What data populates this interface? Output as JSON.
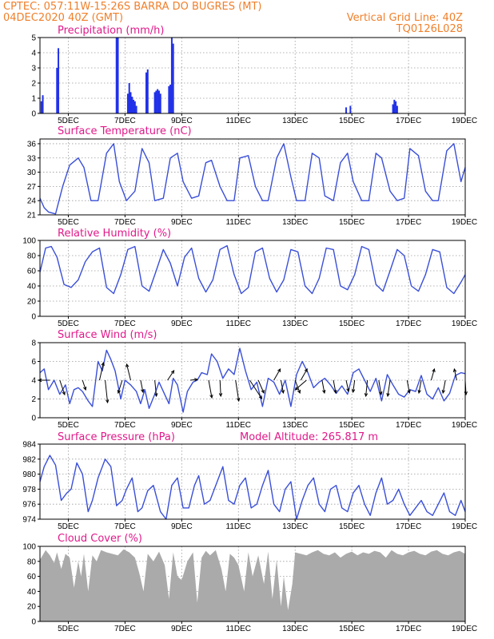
{
  "header": {
    "line1_left": "CPTEC:   057:11W-15:26S  BARRA DO BUGRES (MT)",
    "line2_left": "04DEC2020 40Z (GMT)",
    "line2_right": "Vertical Grid Line: 40Z",
    "line3_right": "TQ0126L028"
  },
  "colors": {
    "header": "#f07f2a",
    "panel_title": "#e0198a",
    "series_line": "#3a4fd8",
    "precip_bar": "#2030e8",
    "cloud_fill": "#aaaaaa",
    "grid": "#9a9a9a",
    "wind_arrow": "#000000"
  },
  "x_axis": {
    "start_day": 4,
    "end_day": 19,
    "tick_labels": [
      "5DEC",
      "7DEC",
      "9DEC",
      "11DEC",
      "13DEC",
      "15DEC",
      "17DEC",
      "19DEC"
    ],
    "tick_days": [
      5,
      7,
      9,
      11,
      13,
      15,
      17,
      19
    ]
  },
  "chart_data": [
    {
      "id": "precip",
      "type": "bar",
      "title": "Precipitation (mm/h)",
      "ylim": [
        0,
        5
      ],
      "yticks": [
        0,
        1,
        2,
        3,
        4,
        5
      ],
      "series": [
        {
          "x": [
            4.05,
            4.1,
            4.6,
            4.65,
            6.7,
            6.75,
            7.1,
            7.15,
            7.2,
            7.25,
            7.3,
            7.35,
            7.4,
            7.75,
            7.8,
            8.05,
            8.1,
            8.15,
            8.2,
            8.25,
            8.55,
            8.6,
            8.65,
            8.7,
            14.8,
            14.95,
            16.45,
            16.5,
            16.55,
            16.6
          ],
          "values": [
            0.8,
            1.2,
            3.0,
            4.3,
            5.0,
            5.0,
            1.3,
            2.0,
            1.4,
            1.1,
            0.9,
            0.8,
            0.5,
            2.7,
            2.9,
            1.4,
            1.5,
            1.6,
            1.5,
            1.3,
            1.8,
            1.9,
            5.0,
            4.6,
            0.4,
            0.5,
            0.6,
            0.9,
            0.8,
            0.5
          ]
        }
      ]
    },
    {
      "id": "temp",
      "type": "line",
      "title": "Surface Temperature (nC)",
      "ylim": [
        21,
        37
      ],
      "yticks": [
        21,
        24,
        27,
        30,
        33,
        36
      ],
      "series": [
        {
          "x": [
            4.0,
            4.15,
            4.3,
            4.55,
            4.8,
            5.05,
            5.35,
            5.55,
            5.8,
            6.05,
            6.35,
            6.6,
            6.8,
            7.05,
            7.35,
            7.6,
            7.85,
            8.05,
            8.35,
            8.6,
            8.85,
            9.05,
            9.35,
            9.6,
            9.85,
            10.05,
            10.35,
            10.6,
            10.85,
            11.05,
            11.35,
            11.6,
            11.85,
            12.05,
            12.35,
            12.6,
            12.85,
            13.05,
            13.35,
            13.6,
            13.85,
            14.05,
            14.35,
            14.6,
            14.85,
            15.05,
            15.35,
            15.6,
            15.85,
            16.05,
            16.35,
            16.6,
            16.85,
            17.05,
            17.35,
            17.6,
            17.85,
            18.05,
            18.35,
            18.6,
            18.85,
            19.0
          ],
          "values": [
            24.5,
            22.5,
            21.6,
            21.2,
            27.0,
            31.5,
            33.0,
            31.0,
            24.0,
            24.0,
            34.0,
            36.0,
            28.0,
            24.0,
            26.0,
            35.0,
            32.0,
            24.0,
            24.5,
            33.0,
            34.0,
            28.0,
            24.5,
            25.0,
            32.0,
            32.5,
            27.0,
            24.0,
            24.0,
            33.0,
            33.5,
            27.0,
            24.0,
            24.0,
            33.0,
            36.0,
            29.0,
            24.0,
            24.0,
            34.0,
            33.0,
            25.0,
            24.0,
            32.0,
            34.0,
            28.0,
            24.0,
            24.0,
            34.0,
            33.0,
            26.0,
            24.0,
            24.5,
            35.0,
            33.5,
            26.0,
            24.0,
            24.0,
            34.5,
            36.0,
            28.0,
            31.0
          ]
        }
      ]
    },
    {
      "id": "rh",
      "type": "line",
      "title": "Relative Humidity (%)",
      "ylim": [
        0,
        100
      ],
      "yticks": [
        0,
        20,
        40,
        60,
        80,
        100
      ],
      "series": [
        {
          "x": [
            4.0,
            4.2,
            4.4,
            4.6,
            4.85,
            5.1,
            5.35,
            5.6,
            5.85,
            6.1,
            6.35,
            6.6,
            6.85,
            7.1,
            7.35,
            7.6,
            7.85,
            8.1,
            8.35,
            8.6,
            8.85,
            9.1,
            9.35,
            9.6,
            9.85,
            10.1,
            10.35,
            10.6,
            10.85,
            11.1,
            11.35,
            11.6,
            11.85,
            12.1,
            12.35,
            12.6,
            12.85,
            13.1,
            13.35,
            13.6,
            13.85,
            14.1,
            14.35,
            14.6,
            14.85,
            15.1,
            15.35,
            15.6,
            15.85,
            16.1,
            16.35,
            16.6,
            16.85,
            17.1,
            17.35,
            17.6,
            17.85,
            18.1,
            18.35,
            18.6,
            18.85,
            19.0
          ],
          "values": [
            58,
            90,
            92,
            78,
            42,
            38,
            48,
            72,
            85,
            90,
            38,
            30,
            55,
            88,
            92,
            40,
            33,
            60,
            88,
            70,
            40,
            78,
            90,
            50,
            32,
            48,
            88,
            93,
            55,
            30,
            38,
            85,
            90,
            50,
            32,
            48,
            88,
            85,
            40,
            30,
            50,
            90,
            88,
            40,
            35,
            55,
            92,
            88,
            42,
            33,
            60,
            88,
            80,
            40,
            33,
            55,
            88,
            85,
            38,
            30,
            45,
            55
          ]
        }
      ]
    },
    {
      "id": "wind",
      "type": "line",
      "title": "Surface Wind (m/s)",
      "ylim": [
        0,
        8
      ],
      "yticks": [
        0,
        2,
        4,
        6,
        8
      ],
      "series": [
        {
          "x": [
            4.0,
            4.15,
            4.3,
            4.5,
            4.7,
            4.9,
            5.05,
            5.2,
            5.35,
            5.5,
            5.7,
            5.85,
            6.05,
            6.2,
            6.35,
            6.5,
            6.65,
            6.85,
            7.0,
            7.2,
            7.4,
            7.55,
            7.7,
            7.85,
            8.05,
            8.2,
            8.35,
            8.55,
            8.7,
            8.85,
            9.05,
            9.2,
            9.4,
            9.55,
            9.7,
            9.9,
            10.05,
            10.25,
            10.45,
            10.65,
            10.85,
            11.05,
            11.25,
            11.45,
            11.65,
            11.85,
            12.05,
            12.25,
            12.45,
            12.65,
            12.85,
            13.05,
            13.25,
            13.45,
            13.65,
            13.85,
            14.05,
            14.25,
            14.45,
            14.65,
            14.85,
            15.05,
            15.25,
            15.45,
            15.65,
            15.85,
            16.05,
            16.25,
            16.45,
            16.65,
            16.85,
            17.05,
            17.25,
            17.45,
            17.65,
            17.85,
            18.05,
            18.25,
            18.45,
            18.65,
            18.85,
            19.0
          ],
          "values": [
            4.8,
            5.2,
            3.0,
            4.0,
            2.5,
            3.5,
            1.5,
            3.0,
            3.2,
            2.8,
            1.8,
            1.2,
            6.0,
            5.0,
            7.2,
            6.2,
            5.0,
            2.0,
            4.0,
            3.5,
            2.8,
            1.5,
            3.0,
            1.0,
            2.5,
            3.8,
            2.8,
            1.5,
            4.2,
            3.5,
            0.6,
            2.8,
            3.8,
            4.0,
            4.8,
            4.6,
            6.8,
            6.0,
            4.2,
            5.2,
            4.6,
            7.4,
            5.0,
            3.0,
            3.8,
            1.2,
            4.2,
            3.8,
            2.5,
            4.0,
            1.2,
            4.6,
            6.0,
            4.8,
            3.2,
            3.8,
            4.2,
            3.5,
            2.6,
            3.4,
            2.5,
            4.8,
            5.2,
            4.0,
            2.8,
            4.2,
            1.8,
            4.6,
            3.5,
            2.5,
            2.2,
            3.0,
            2.8,
            4.5,
            2.5,
            2.0,
            3.2,
            1.8,
            2.6,
            4.5,
            4.8,
            4.7
          ]
        }
      ],
      "arrows": {
        "x": [
          4.35,
          4.7,
          5.5,
          6.1,
          6.3,
          6.9,
          7.2,
          7.55,
          8.05,
          8.5,
          9.3,
          9.95,
          10.35,
          10.9,
          11.4,
          11.7,
          12.25,
          12.5,
          13.0,
          13.2,
          13.4,
          13.95,
          14.35,
          14.8,
          15.1,
          15.55,
          15.95,
          16.35,
          16.95,
          17.45,
          17.8,
          18.3,
          18.7,
          19.0
        ],
        "u": [
          -1.4,
          0.6,
          0.4,
          0.5,
          0.3,
          -0.5,
          -0.5,
          0.3,
          0.2,
          0.8,
          0.9,
          0.4,
          0.1,
          0.4,
          1.5,
          0.7,
          0.8,
          0.3,
          0.6,
          0.8,
          -1.4,
          0.3,
          0.3,
          0.3,
          -0.2,
          -0.2,
          0.3,
          -0.3,
          0.3,
          -0.3,
          0.4,
          -0.3,
          -0.3,
          0.1
        ],
        "v": [
          0.0,
          -1.8,
          -1.2,
          2.2,
          -2.8,
          -1.6,
          2.0,
          -1.5,
          -2.0,
          1.2,
          0.1,
          -2.2,
          -2.0,
          -2.6,
          -2.3,
          -1.6,
          1.4,
          -1.6,
          -1.6,
          1.4,
          -1.2,
          -1.6,
          -1.6,
          -1.4,
          -1.5,
          -2.0,
          -1.8,
          -2.0,
          -1.6,
          -1.6,
          1.4,
          -1.6,
          1.4,
          -1.8
        ]
      }
    },
    {
      "id": "pres",
      "type": "line",
      "title": "Surface Pressure (hPa)",
      "title_extra": "Model Altitude: 265.817 m",
      "ylim": [
        974,
        984
      ],
      "yticks": [
        974,
        976,
        978,
        980,
        982,
        984
      ],
      "series": [
        {
          "x": [
            4.0,
            4.15,
            4.35,
            4.55,
            4.75,
            4.95,
            5.1,
            5.3,
            5.5,
            5.7,
            5.85,
            6.05,
            6.3,
            6.5,
            6.7,
            6.9,
            7.05,
            7.25,
            7.45,
            7.6,
            7.8,
            8.0,
            8.25,
            8.45,
            8.65,
            8.85,
            9.05,
            9.25,
            9.45,
            9.6,
            9.8,
            10.0,
            10.25,
            10.45,
            10.65,
            10.85,
            11.05,
            11.25,
            11.45,
            11.65,
            11.85,
            12.05,
            12.25,
            12.45,
            12.65,
            12.85,
            13.05,
            13.25,
            13.45,
            13.65,
            13.85,
            14.05,
            14.25,
            14.45,
            14.65,
            14.85,
            15.05,
            15.25,
            15.45,
            15.65,
            15.85,
            16.05,
            16.25,
            16.45,
            16.65,
            16.85,
            17.05,
            17.25,
            17.45,
            17.65,
            17.85,
            18.05,
            18.25,
            18.45,
            18.65,
            18.85,
            19.0
          ],
          "values": [
            979.0,
            981.0,
            982.5,
            981.2,
            976.5,
            977.5,
            978.0,
            981.5,
            980.0,
            975.0,
            976.5,
            979.5,
            982.0,
            981.0,
            975.8,
            976.5,
            978.0,
            979.5,
            975.0,
            975.5,
            977.8,
            978.5,
            975.0,
            974.0,
            978.5,
            979.5,
            975.5,
            975.5,
            978.5,
            979.8,
            976.0,
            976.5,
            979.0,
            981.0,
            976.5,
            976.0,
            978.5,
            979.5,
            975.5,
            976.0,
            978.5,
            980.5,
            976.0,
            975.0,
            978.0,
            979.0,
            974.0,
            976.5,
            978.5,
            979.5,
            976.0,
            975.0,
            978.0,
            978.5,
            975.5,
            975.0,
            977.5,
            978.5,
            976.0,
            974.5,
            977.5,
            979.5,
            976.0,
            976.5,
            978.0,
            976.0,
            974.5,
            975.5,
            976.5,
            975.0,
            974.5,
            976.0,
            977.5,
            975.0,
            974.5,
            976.5,
            975.0
          ]
        }
      ]
    },
    {
      "id": "cloud",
      "type": "area",
      "title": "Cloud Cover (%)",
      "ylim": [
        0,
        100
      ],
      "yticks": [
        0,
        20,
        40,
        60,
        80,
        100
      ],
      "series": [
        {
          "x": [
            4.0,
            4.2,
            4.35,
            4.5,
            4.6,
            4.75,
            4.9,
            5.05,
            5.2,
            5.35,
            5.45,
            5.55,
            5.7,
            5.85,
            6.0,
            6.15,
            6.35,
            6.55,
            6.75,
            6.95,
            7.15,
            7.35,
            7.5,
            7.65,
            7.8,
            8.0,
            8.2,
            8.4,
            8.55,
            8.7,
            8.85,
            9.0,
            9.2,
            9.4,
            9.55,
            9.7,
            9.85,
            10.0,
            10.2,
            10.4,
            10.55,
            10.7,
            10.85,
            11.0,
            11.2,
            11.35,
            11.5,
            11.7,
            11.9,
            12.05,
            12.2,
            12.35,
            12.5,
            12.6,
            12.75,
            12.9,
            13.0,
            13.2,
            13.4,
            13.6,
            13.8,
            14.0,
            14.2,
            14.4,
            14.6,
            14.8,
            15.0,
            15.2,
            15.4,
            15.6,
            15.8,
            16.0,
            16.2,
            16.4,
            16.6,
            16.8,
            17.0,
            17.2,
            17.4,
            17.6,
            17.8,
            18.0,
            18.2,
            18.4,
            18.6,
            18.8,
            19.0
          ],
          "values": [
            82,
            95,
            88,
            78,
            92,
            70,
            90,
            85,
            45,
            80,
            60,
            90,
            40,
            88,
            80,
            95,
            92,
            90,
            88,
            96,
            92,
            85,
            65,
            40,
            90,
            80,
            93,
            75,
            30,
            92,
            60,
            55,
            80,
            92,
            25,
            85,
            94,
            88,
            95,
            70,
            40,
            90,
            85,
            75,
            40,
            92,
            60,
            88,
            50,
            93,
            30,
            82,
            20,
            60,
            15,
            50,
            92,
            90,
            88,
            92,
            95,
            90,
            88,
            92,
            85,
            90,
            93,
            88,
            92,
            90,
            94,
            92,
            85,
            95,
            90,
            88,
            92,
            94,
            90,
            88,
            93,
            95,
            90,
            88,
            92,
            94,
            90
          ]
        }
      ]
    }
  ]
}
